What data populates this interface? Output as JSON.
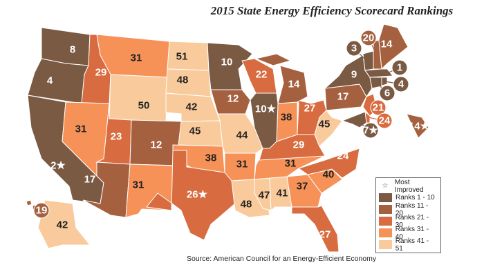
{
  "title": "2015 State Energy Efficiency Scorecard Rankings",
  "source": "Source: American Council for an Energy-Efficient Economy",
  "legend": {
    "most_improved": {
      "label": "Most Improved",
      "icon": "star-outline-icon"
    },
    "tiers": [
      {
        "label": "Ranks 1 - 10",
        "color": "#7a5a43"
      },
      {
        "label": "Ranks 11 - 20",
        "color": "#a5613f"
      },
      {
        "label": "Ranks 21 - 30",
        "color": "#d86b3f"
      },
      {
        "label": "Ranks 31 - 40",
        "color": "#f69158"
      },
      {
        "label": "Ranks 41 - 51",
        "color": "#f9ca9b"
      }
    ]
  },
  "states": [
    {
      "rank": 8
    },
    {
      "rank": 4
    },
    {
      "rank": 2,
      "most_improved": true
    },
    {
      "rank": 29
    },
    {
      "rank": 31
    },
    {
      "rank": 31
    },
    {
      "rank": 50
    },
    {
      "rank": 23
    },
    {
      "rank": 12
    },
    {
      "rank": 17
    },
    {
      "rank": 31
    },
    {
      "rank": 51
    },
    {
      "rank": 48
    },
    {
      "rank": 42
    },
    {
      "rank": 45
    },
    {
      "rank": 38
    },
    {
      "rank": 26,
      "most_improved": true
    },
    {
      "rank": 10
    },
    {
      "rank": 12
    },
    {
      "rank": 44
    },
    {
      "rank": 31
    },
    {
      "rank": 48
    },
    {
      "rank": 47
    },
    {
      "rank": 41
    },
    {
      "rank": 37
    },
    {
      "rank": 27
    },
    {
      "rank": 40
    },
    {
      "rank": 24
    },
    {
      "rank": 31
    },
    {
      "rank": 29
    },
    {
      "rank": 45
    },
    {
      "rank": 27
    },
    {
      "rank": 38
    },
    {
      "rank": 10,
      "most_improved": true
    },
    {
      "rank": 22
    },
    {
      "rank": 14
    },
    {
      "rank": 17
    },
    {
      "rank": 9
    },
    {
      "rank": 3
    },
    {
      "rank": 20
    },
    {
      "rank": 14
    },
    {
      "rank": 1
    },
    {
      "rank": 6
    },
    {
      "rank": 4
    },
    {
      "rank": 21
    },
    {
      "rank": 24
    },
    {
      "rank": 7,
      "most_improved": true
    },
    {
      "rank": 14,
      "most_improved": true
    },
    {
      "rank": 19
    },
    {
      "rank": 42
    }
  ]
}
